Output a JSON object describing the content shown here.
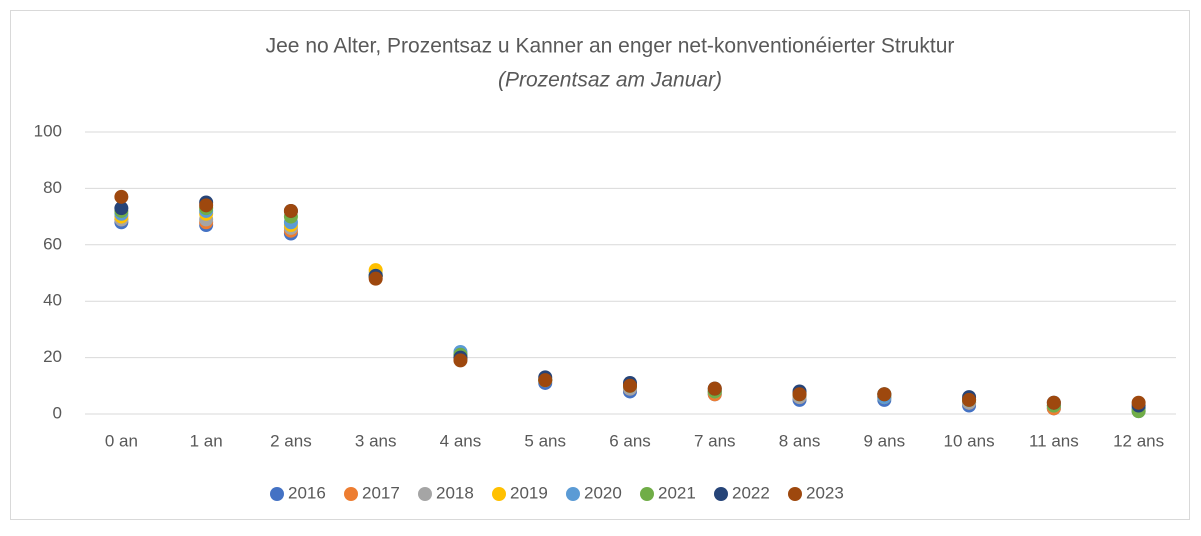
{
  "chart_data": {
    "type": "dot",
    "title": "Jee no Alter, Prozentsaz u Kanner an enger net-konventionéierter Struktur",
    "subtitle": "(Prozentsaz am Januar)",
    "categories": [
      "0 an",
      "1 an",
      "2 ans",
      "3 ans",
      "4 ans",
      "5 ans",
      "6 ans",
      "7 ans",
      "8 ans",
      "9 ans",
      "10 ans",
      "11 ans",
      "12 ans"
    ],
    "series": [
      {
        "name": "2016",
        "color": "#4472c4",
        "values": [
          68,
          67,
          64,
          49,
          20,
          11,
          8,
          7,
          5,
          5,
          3,
          2,
          1
        ]
      },
      {
        "name": "2017",
        "color": "#ed7d31",
        "values": [
          69,
          68,
          65,
          49,
          20,
          12,
          9,
          7,
          6,
          6,
          4,
          2,
          2
        ]
      },
      {
        "name": "2018",
        "color": "#a5a5a5",
        "values": [
          69,
          69,
          66,
          50,
          21,
          12,
          9,
          8,
          6,
          6,
          4,
          3,
          2
        ]
      },
      {
        "name": "2019",
        "color": "#ffc000",
        "values": [
          70,
          71,
          67,
          51,
          21,
          12,
          10,
          8,
          7,
          6,
          5,
          3,
          2
        ]
      },
      {
        "name": "2020",
        "color": "#5b9bd5",
        "values": [
          71,
          72,
          68,
          49,
          22,
          12,
          10,
          8,
          7,
          6,
          5,
          3,
          2
        ]
      },
      {
        "name": "2021",
        "color": "#70ad47",
        "values": [
          72,
          73,
          70,
          49,
          21,
          12,
          10,
          8,
          7,
          7,
          5,
          3,
          1
        ]
      },
      {
        "name": "2022",
        "color": "#264478",
        "values": [
          73,
          75,
          72,
          49,
          20,
          13,
          11,
          9,
          8,
          7,
          6,
          4,
          3
        ]
      },
      {
        "name": "2023",
        "color": "#9e480e",
        "values": [
          77,
          74,
          72,
          48,
          19,
          12,
          10,
          9,
          7,
          7,
          5,
          4,
          4
        ]
      }
    ],
    "ylim": [
      0,
      100
    ],
    "yticks": [
      0,
      20,
      40,
      60,
      80,
      100
    ],
    "grid": true,
    "legend": "bottom"
  }
}
